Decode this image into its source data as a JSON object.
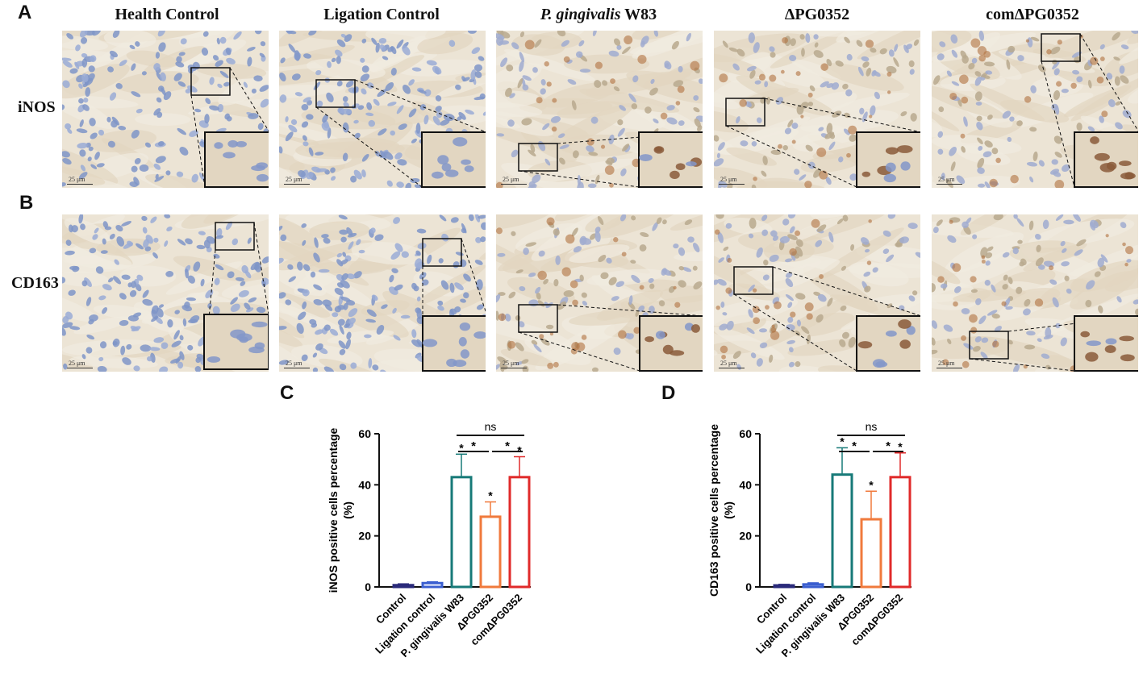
{
  "panels": {
    "A": "A",
    "B": "B",
    "C": "C",
    "D": "D"
  },
  "columns": [
    "Health Control",
    "Ligation Control",
    "W83",
    "ΔPG0352",
    "comΔPG0352"
  ],
  "column3_italic": "P. gingivalis",
  "rows": [
    "iNOS",
    "CD163"
  ],
  "scale_bar": "25 μm",
  "colors": {
    "control": "#2a2a7a",
    "ligation": "#3b5fd0",
    "w83": "#177a78",
    "dpg": "#f07a3c",
    "com": "#e02a2a"
  },
  "chart_data": [
    {
      "type": "bar",
      "panel": "C",
      "categories": [
        "Control",
        "Ligation control",
        "P. gingivalis W83",
        "ΔPG0352",
        "comΔPG0352"
      ],
      "values": [
        0.7,
        1.5,
        43,
        27.5,
        43
      ],
      "errors": [
        0.5,
        0.5,
        9,
        5.8,
        8
      ],
      "ylabel_line1": "iNOS positive cells percentage",
      "ylabel_line2": "(%)",
      "ylim": [
        0,
        60
      ],
      "yticks": [
        0,
        20,
        40,
        60
      ],
      "stars": [
        "",
        "",
        "*",
        "*",
        "*"
      ],
      "brackets": [
        {
          "from": 2,
          "to": 4,
          "label": "ns"
        },
        {
          "from": 2,
          "to": 3,
          "label": "*"
        },
        {
          "from": 3,
          "to": 4,
          "label": "*"
        }
      ]
    },
    {
      "type": "bar",
      "panel": "D",
      "categories": [
        "Control",
        "Ligation control",
        "P. gingivalis W83",
        "ΔPG0352",
        "comΔPG0352"
      ],
      "values": [
        0.6,
        1.0,
        44,
        26.5,
        43
      ],
      "errors": [
        0.4,
        0.6,
        10.5,
        11,
        9.5
      ],
      "ylabel_line1": "CD163  positive cells percentage",
      "ylabel_line2": "(%)",
      "ylim": [
        0,
        60
      ],
      "yticks": [
        0,
        20,
        40,
        60
      ],
      "stars": [
        "",
        "",
        "*",
        "*",
        "*"
      ],
      "brackets": [
        {
          "from": 2,
          "to": 4,
          "label": "ns"
        },
        {
          "from": 2,
          "to": 3,
          "label": "*"
        },
        {
          "from": 3,
          "to": 4,
          "label": "*"
        }
      ]
    }
  ]
}
